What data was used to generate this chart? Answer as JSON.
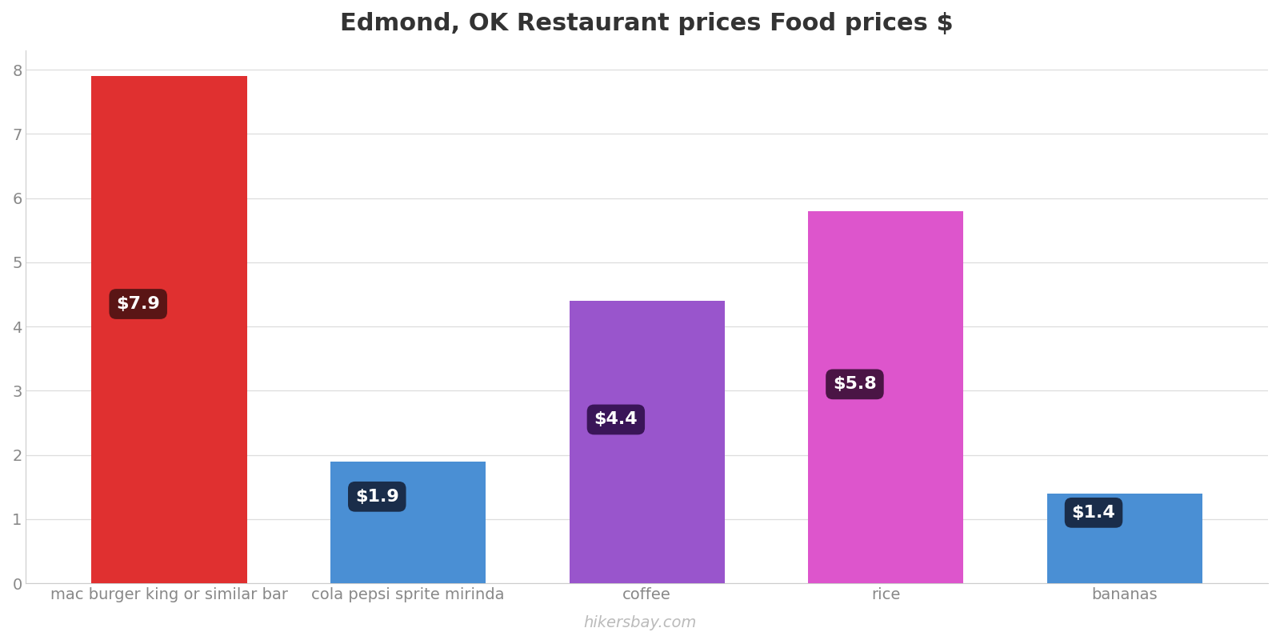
{
  "title": "Edmond, OK Restaurant prices Food prices $",
  "categories": [
    "mac burger king or similar bar",
    "cola pepsi sprite mirinda",
    "coffee",
    "rice",
    "bananas"
  ],
  "values": [
    7.9,
    1.9,
    4.4,
    5.8,
    1.4
  ],
  "bar_colors": [
    "#e03030",
    "#4a8fd4",
    "#9955cc",
    "#dd55cc",
    "#4a8fd4"
  ],
  "label_texts": [
    "$7.9",
    "$1.9",
    "$4.4",
    "$5.8",
    "$1.4"
  ],
  "label_box_colors": [
    "#5a1515",
    "#1a2d4a",
    "#3a1558",
    "#4a1545",
    "#1a2d4a"
  ],
  "ylim": [
    0,
    8.3
  ],
  "yticks": [
    0,
    1,
    2,
    3,
    4,
    5,
    6,
    7,
    8
  ],
  "watermark": "hikersbay.com",
  "background_color": "#ffffff",
  "grid_color": "#dddddd",
  "title_fontsize": 22,
  "tick_fontsize": 14,
  "label_fontsize": 16,
  "watermark_fontsize": 14
}
